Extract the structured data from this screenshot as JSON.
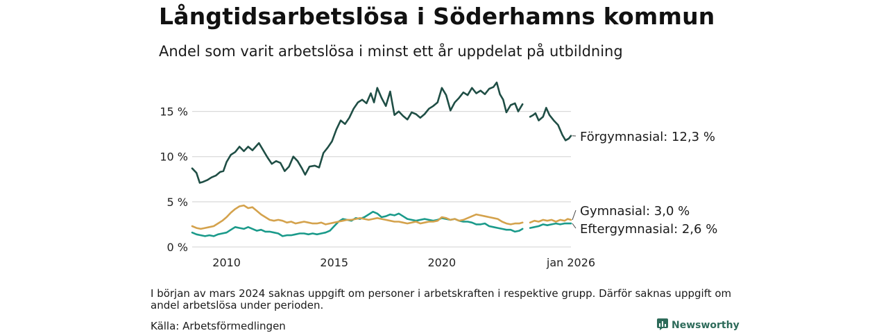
{
  "header": {
    "title": "Långtidsarbetslösa i Söderhamns kommun",
    "subtitle": "Andel som varit arbetslösa i minst ett år uppdelat på utbildning"
  },
  "footer": {
    "note": "I början av mars 2024 saknas uppgift om personer i arbetskraften i respektive grupp. Därför saknas uppgift om andel arbetslösa under perioden.",
    "source": "Källa: Arbetsförmedlingen",
    "brand": "Newsworthy"
  },
  "colors": {
    "forgymnasial": "#1f4e45",
    "gymnasial": "#d4a24c",
    "eftergymnasial": "#1a9a8a",
    "grid": "#d9d9d9",
    "brand": "#2e6b5a"
  },
  "chart_data": {
    "type": "line",
    "title": "Långtidsarbetslösa i Söderhamns kommun",
    "subtitle": "Andel som varit arbetslösa i minst ett år uppdelat på utbildning",
    "xlabel": "",
    "ylabel": "",
    "x_range": [
      2008.4,
      2026.0
    ],
    "ylim": [
      0,
      18.5
    ],
    "y_ticks": [
      0,
      5,
      10,
      15
    ],
    "y_tick_labels": [
      "0 %",
      "5 %",
      "10 %",
      "15 %"
    ],
    "x_ticks": [
      2010,
      2015,
      2020,
      2026.0
    ],
    "x_tick_labels": [
      "2010",
      "2015",
      "2020",
      "jan 2026"
    ],
    "grid": true,
    "gap": [
      2023.75,
      2024.1
    ],
    "series": [
      {
        "name": "Förgymnasial",
        "label": "Förgymnasial: 12,3 %",
        "color_key": "forgymnasial",
        "points": [
          [
            2008.4,
            8.7
          ],
          [
            2008.6,
            8.2
          ],
          [
            2008.75,
            7.1
          ],
          [
            2008.9,
            7.2
          ],
          [
            2009.1,
            7.4
          ],
          [
            2009.3,
            7.7
          ],
          [
            2009.5,
            7.9
          ],
          [
            2009.7,
            8.3
          ],
          [
            2009.85,
            8.4
          ],
          [
            2010.0,
            9.4
          ],
          [
            2010.2,
            10.2
          ],
          [
            2010.4,
            10.5
          ],
          [
            2010.6,
            11.1
          ],
          [
            2010.8,
            10.6
          ],
          [
            2011.0,
            11.1
          ],
          [
            2011.2,
            10.7
          ],
          [
            2011.5,
            11.5
          ],
          [
            2011.7,
            10.7
          ],
          [
            2011.9,
            9.9
          ],
          [
            2012.1,
            9.2
          ],
          [
            2012.3,
            9.5
          ],
          [
            2012.5,
            9.3
          ],
          [
            2012.7,
            8.4
          ],
          [
            2012.9,
            8.9
          ],
          [
            2013.1,
            10.0
          ],
          [
            2013.3,
            9.5
          ],
          [
            2013.5,
            8.7
          ],
          [
            2013.65,
            8.0
          ],
          [
            2013.85,
            8.9
          ],
          [
            2014.1,
            9.0
          ],
          [
            2014.3,
            8.8
          ],
          [
            2014.5,
            10.4
          ],
          [
            2014.7,
            11.0
          ],
          [
            2014.9,
            11.7
          ],
          [
            2015.1,
            13.0
          ],
          [
            2015.3,
            14.0
          ],
          [
            2015.5,
            13.6
          ],
          [
            2015.7,
            14.3
          ],
          [
            2015.9,
            15.3
          ],
          [
            2016.1,
            16.0
          ],
          [
            2016.3,
            16.3
          ],
          [
            2016.5,
            15.9
          ],
          [
            2016.7,
            17.0
          ],
          [
            2016.85,
            16.0
          ],
          [
            2017.0,
            17.6
          ],
          [
            2017.2,
            16.5
          ],
          [
            2017.4,
            15.6
          ],
          [
            2017.6,
            17.2
          ],
          [
            2017.8,
            14.6
          ],
          [
            2018.0,
            15.0
          ],
          [
            2018.2,
            14.5
          ],
          [
            2018.4,
            14.1
          ],
          [
            2018.6,
            14.9
          ],
          [
            2018.8,
            14.7
          ],
          [
            2019.0,
            14.3
          ],
          [
            2019.2,
            14.7
          ],
          [
            2019.4,
            15.3
          ],
          [
            2019.6,
            15.6
          ],
          [
            2019.8,
            16.0
          ],
          [
            2020.0,
            17.6
          ],
          [
            2020.2,
            16.8
          ],
          [
            2020.4,
            15.1
          ],
          [
            2020.6,
            16.0
          ],
          [
            2020.8,
            16.5
          ],
          [
            2021.0,
            17.1
          ],
          [
            2021.2,
            16.8
          ],
          [
            2021.4,
            17.6
          ],
          [
            2021.6,
            17.0
          ],
          [
            2021.8,
            17.3
          ],
          [
            2022.0,
            16.9
          ],
          [
            2022.2,
            17.5
          ],
          [
            2022.4,
            17.7
          ],
          [
            2022.55,
            18.2
          ],
          [
            2022.7,
            16.9
          ],
          [
            2022.85,
            16.3
          ],
          [
            2023.0,
            14.9
          ],
          [
            2023.2,
            15.7
          ],
          [
            2023.4,
            15.9
          ],
          [
            2023.55,
            15.0
          ],
          [
            2023.75,
            15.8
          ],
          [
            2024.1,
            14.4
          ],
          [
            2024.25,
            14.6
          ],
          [
            2024.35,
            14.8
          ],
          [
            2024.5,
            14.0
          ],
          [
            2024.7,
            14.4
          ],
          [
            2024.85,
            15.4
          ],
          [
            2025.0,
            14.6
          ],
          [
            2025.2,
            14.0
          ],
          [
            2025.4,
            13.5
          ],
          [
            2025.6,
            12.4
          ],
          [
            2025.75,
            11.8
          ],
          [
            2025.9,
            12.0
          ],
          [
            2026.0,
            12.3
          ]
        ]
      },
      {
        "name": "Gymnasial",
        "label": "Gymnasial:  3,0 %",
        "color_key": "gymnasial",
        "points": [
          [
            2008.4,
            2.3
          ],
          [
            2008.6,
            2.1
          ],
          [
            2008.8,
            2.0
          ],
          [
            2009.0,
            2.1
          ],
          [
            2009.2,
            2.2
          ],
          [
            2009.4,
            2.3
          ],
          [
            2009.6,
            2.6
          ],
          [
            2009.8,
            2.9
          ],
          [
            2010.0,
            3.3
          ],
          [
            2010.2,
            3.8
          ],
          [
            2010.4,
            4.2
          ],
          [
            2010.6,
            4.5
          ],
          [
            2010.8,
            4.6
          ],
          [
            2011.0,
            4.3
          ],
          [
            2011.2,
            4.4
          ],
          [
            2011.4,
            4.0
          ],
          [
            2011.6,
            3.6
          ],
          [
            2011.8,
            3.3
          ],
          [
            2012.0,
            3.0
          ],
          [
            2012.2,
            2.9
          ],
          [
            2012.4,
            3.0
          ],
          [
            2012.6,
            2.9
          ],
          [
            2012.8,
            2.7
          ],
          [
            2013.0,
            2.8
          ],
          [
            2013.2,
            2.6
          ],
          [
            2013.4,
            2.7
          ],
          [
            2013.6,
            2.8
          ],
          [
            2013.8,
            2.7
          ],
          [
            2014.0,
            2.6
          ],
          [
            2014.2,
            2.6
          ],
          [
            2014.4,
            2.7
          ],
          [
            2014.6,
            2.5
          ],
          [
            2014.8,
            2.6
          ],
          [
            2015.0,
            2.7
          ],
          [
            2015.2,
            2.8
          ],
          [
            2015.4,
            2.9
          ],
          [
            2015.6,
            3.0
          ],
          [
            2015.8,
            3.0
          ],
          [
            2016.0,
            3.1
          ],
          [
            2016.2,
            3.2
          ],
          [
            2016.4,
            3.1
          ],
          [
            2016.6,
            3.0
          ],
          [
            2016.8,
            3.1
          ],
          [
            2017.0,
            3.2
          ],
          [
            2017.2,
            3.1
          ],
          [
            2017.4,
            3.0
          ],
          [
            2017.6,
            2.9
          ],
          [
            2017.8,
            2.8
          ],
          [
            2018.0,
            2.8
          ],
          [
            2018.2,
            2.7
          ],
          [
            2018.4,
            2.6
          ],
          [
            2018.6,
            2.7
          ],
          [
            2018.8,
            2.8
          ],
          [
            2019.0,
            2.6
          ],
          [
            2019.2,
            2.7
          ],
          [
            2019.4,
            2.8
          ],
          [
            2019.6,
            2.8
          ],
          [
            2019.8,
            2.9
          ],
          [
            2020.0,
            3.3
          ],
          [
            2020.2,
            3.2
          ],
          [
            2020.4,
            3.0
          ],
          [
            2020.6,
            3.1
          ],
          [
            2020.8,
            2.9
          ],
          [
            2021.0,
            3.0
          ],
          [
            2021.2,
            3.2
          ],
          [
            2021.4,
            3.4
          ],
          [
            2021.6,
            3.6
          ],
          [
            2021.8,
            3.5
          ],
          [
            2022.0,
            3.4
          ],
          [
            2022.2,
            3.3
          ],
          [
            2022.4,
            3.2
          ],
          [
            2022.6,
            3.1
          ],
          [
            2022.8,
            2.8
          ],
          [
            2023.0,
            2.6
          ],
          [
            2023.2,
            2.5
          ],
          [
            2023.4,
            2.6
          ],
          [
            2023.6,
            2.6
          ],
          [
            2023.75,
            2.7
          ],
          [
            2024.1,
            2.7
          ],
          [
            2024.3,
            2.9
          ],
          [
            2024.5,
            2.8
          ],
          [
            2024.7,
            3.0
          ],
          [
            2024.9,
            2.9
          ],
          [
            2025.1,
            3.0
          ],
          [
            2025.3,
            2.8
          ],
          [
            2025.5,
            3.0
          ],
          [
            2025.7,
            2.9
          ],
          [
            2025.85,
            3.1
          ],
          [
            2026.0,
            3.0
          ]
        ]
      },
      {
        "name": "Eftergymnasial",
        "label": "Eftergymnasial:  2,6 %",
        "color_key": "eftergymnasial",
        "points": [
          [
            2008.4,
            1.6
          ],
          [
            2008.6,
            1.4
          ],
          [
            2008.8,
            1.3
          ],
          [
            2009.0,
            1.2
          ],
          [
            2009.2,
            1.3
          ],
          [
            2009.4,
            1.2
          ],
          [
            2009.6,
            1.4
          ],
          [
            2009.8,
            1.5
          ],
          [
            2010.0,
            1.6
          ],
          [
            2010.2,
            1.9
          ],
          [
            2010.4,
            2.2
          ],
          [
            2010.6,
            2.1
          ],
          [
            2010.8,
            2.0
          ],
          [
            2011.0,
            2.2
          ],
          [
            2011.2,
            2.0
          ],
          [
            2011.4,
            1.8
          ],
          [
            2011.6,
            1.9
          ],
          [
            2011.8,
            1.7
          ],
          [
            2012.0,
            1.7
          ],
          [
            2012.2,
            1.6
          ],
          [
            2012.4,
            1.5
          ],
          [
            2012.6,
            1.2
          ],
          [
            2012.8,
            1.3
          ],
          [
            2013.0,
            1.3
          ],
          [
            2013.2,
            1.4
          ],
          [
            2013.4,
            1.5
          ],
          [
            2013.6,
            1.5
          ],
          [
            2013.8,
            1.4
          ],
          [
            2014.0,
            1.5
          ],
          [
            2014.2,
            1.4
          ],
          [
            2014.4,
            1.5
          ],
          [
            2014.6,
            1.6
          ],
          [
            2014.8,
            1.8
          ],
          [
            2015.0,
            2.3
          ],
          [
            2015.2,
            2.8
          ],
          [
            2015.4,
            3.1
          ],
          [
            2015.6,
            3.0
          ],
          [
            2015.8,
            2.9
          ],
          [
            2016.0,
            3.2
          ],
          [
            2016.2,
            3.1
          ],
          [
            2016.4,
            3.3
          ],
          [
            2016.6,
            3.6
          ],
          [
            2016.8,
            3.9
          ],
          [
            2017.0,
            3.7
          ],
          [
            2017.2,
            3.3
          ],
          [
            2017.4,
            3.4
          ],
          [
            2017.6,
            3.6
          ],
          [
            2017.8,
            3.5
          ],
          [
            2018.0,
            3.7
          ],
          [
            2018.2,
            3.4
          ],
          [
            2018.4,
            3.1
          ],
          [
            2018.6,
            3.0
          ],
          [
            2018.8,
            2.9
          ],
          [
            2019.0,
            3.0
          ],
          [
            2019.2,
            3.1
          ],
          [
            2019.4,
            3.0
          ],
          [
            2019.6,
            2.9
          ],
          [
            2019.8,
            3.0
          ],
          [
            2020.0,
            3.2
          ],
          [
            2020.2,
            3.1
          ],
          [
            2020.4,
            3.0
          ],
          [
            2020.6,
            3.1
          ],
          [
            2020.8,
            2.9
          ],
          [
            2021.0,
            2.8
          ],
          [
            2021.2,
            2.8
          ],
          [
            2021.4,
            2.7
          ],
          [
            2021.6,
            2.5
          ],
          [
            2021.8,
            2.5
          ],
          [
            2022.0,
            2.6
          ],
          [
            2022.2,
            2.3
          ],
          [
            2022.4,
            2.2
          ],
          [
            2022.6,
            2.1
          ],
          [
            2022.8,
            2.0
          ],
          [
            2023.0,
            1.9
          ],
          [
            2023.2,
            1.9
          ],
          [
            2023.4,
            1.7
          ],
          [
            2023.6,
            1.8
          ],
          [
            2023.75,
            2.0
          ],
          [
            2024.1,
            2.1
          ],
          [
            2024.3,
            2.2
          ],
          [
            2024.5,
            2.3
          ],
          [
            2024.7,
            2.5
          ],
          [
            2024.9,
            2.4
          ],
          [
            2025.1,
            2.5
          ],
          [
            2025.3,
            2.6
          ],
          [
            2025.5,
            2.5
          ],
          [
            2025.7,
            2.6
          ],
          [
            2025.85,
            2.6
          ],
          [
            2026.0,
            2.6
          ]
        ]
      }
    ]
  }
}
